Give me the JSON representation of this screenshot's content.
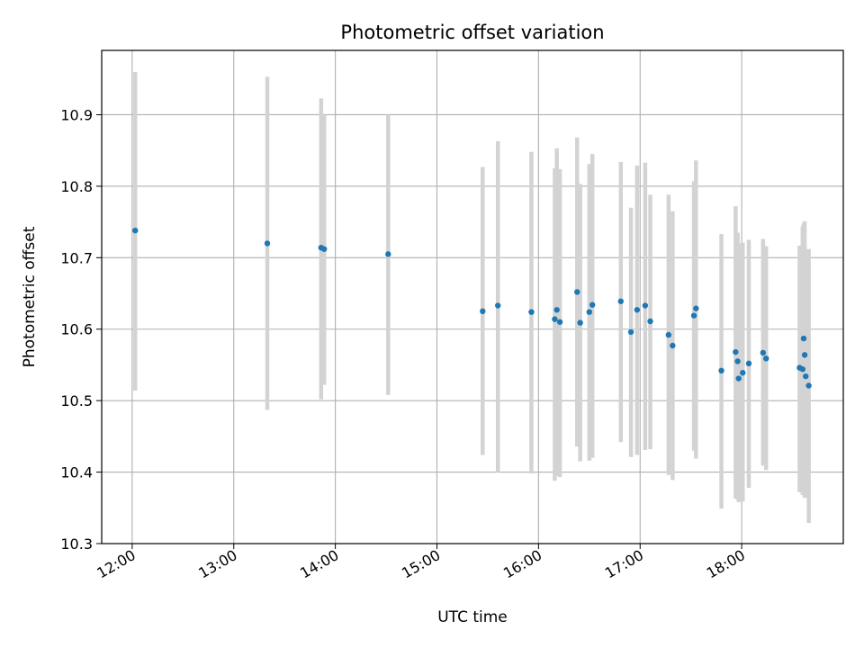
{
  "chart_data": {
    "type": "scatter",
    "title": "Photometric offset variation",
    "xlabel": "UTC time",
    "ylabel": "Photometric offset",
    "x_tick_labels": [
      "12:00",
      "13:00",
      "14:00",
      "15:00",
      "16:00",
      "17:00",
      "18:00"
    ],
    "x_ticks_hours": [
      12,
      13,
      14,
      15,
      16,
      17,
      18
    ],
    "y_ticks": [
      10.3,
      10.4,
      10.5,
      10.6,
      10.7,
      10.8,
      10.9
    ],
    "y_tick_labels": [
      "10.3",
      "10.4",
      "10.5",
      "10.6",
      "10.7",
      "10.8",
      "10.9"
    ],
    "xlim_hours": [
      11.7,
      19.0
    ],
    "ylim": [
      10.3,
      10.99
    ],
    "grid": true,
    "colors": {
      "points": "#1f77b4",
      "errorbars": "#d3d3d3",
      "grid": "#b0b0b0"
    },
    "points": [
      {
        "t": 12.03,
        "y": 10.738,
        "lo": 10.514,
        "hi": 10.96
      },
      {
        "t": 13.33,
        "y": 10.72,
        "lo": 10.487,
        "hi": 10.953
      },
      {
        "t": 13.86,
        "y": 10.714,
        "lo": 10.502,
        "hi": 10.923
      },
      {
        "t": 13.89,
        "y": 10.712,
        "lo": 10.522,
        "hi": 10.9
      },
      {
        "t": 14.52,
        "y": 10.705,
        "lo": 10.508,
        "hi": 10.9
      },
      {
        "t": 15.45,
        "y": 10.625,
        "lo": 10.424,
        "hi": 10.827
      },
      {
        "t": 15.6,
        "y": 10.633,
        "lo": 10.4,
        "hi": 10.863
      },
      {
        "t": 15.93,
        "y": 10.624,
        "lo": 10.398,
        "hi": 10.848
      },
      {
        "t": 16.16,
        "y": 10.614,
        "lo": 10.388,
        "hi": 10.825
      },
      {
        "t": 16.18,
        "y": 10.627,
        "lo": 10.395,
        "hi": 10.853
      },
      {
        "t": 16.21,
        "y": 10.61,
        "lo": 10.393,
        "hi": 10.824
      },
      {
        "t": 16.38,
        "y": 10.652,
        "lo": 10.436,
        "hi": 10.868
      },
      {
        "t": 16.41,
        "y": 10.609,
        "lo": 10.415,
        "hi": 10.803
      },
      {
        "t": 16.5,
        "y": 10.624,
        "lo": 10.416,
        "hi": 10.831
      },
      {
        "t": 16.53,
        "y": 10.634,
        "lo": 10.42,
        "hi": 10.845
      },
      {
        "t": 16.81,
        "y": 10.639,
        "lo": 10.442,
        "hi": 10.834
      },
      {
        "t": 16.91,
        "y": 10.596,
        "lo": 10.421,
        "hi": 10.77
      },
      {
        "t": 16.97,
        "y": 10.627,
        "lo": 10.424,
        "hi": 10.829
      },
      {
        "t": 17.05,
        "y": 10.633,
        "lo": 10.431,
        "hi": 10.833
      },
      {
        "t": 17.1,
        "y": 10.611,
        "lo": 10.432,
        "hi": 10.788
      },
      {
        "t": 17.28,
        "y": 10.592,
        "lo": 10.396,
        "hi": 10.788
      },
      {
        "t": 17.32,
        "y": 10.577,
        "lo": 10.389,
        "hi": 10.765
      },
      {
        "t": 17.53,
        "y": 10.619,
        "lo": 10.43,
        "hi": 10.807
      },
      {
        "t": 17.55,
        "y": 10.629,
        "lo": 10.419,
        "hi": 10.836
      },
      {
        "t": 17.8,
        "y": 10.542,
        "lo": 10.349,
        "hi": 10.733
      },
      {
        "t": 17.94,
        "y": 10.568,
        "lo": 10.363,
        "hi": 10.772
      },
      {
        "t": 17.96,
        "y": 10.555,
        "lo": 10.362,
        "hi": 10.735
      },
      {
        "t": 17.97,
        "y": 10.531,
        "lo": 10.358,
        "hi": 10.72
      },
      {
        "t": 18.01,
        "y": 10.539,
        "lo": 10.359,
        "hi": 10.721
      },
      {
        "t": 18.07,
        "y": 10.552,
        "lo": 10.378,
        "hi": 10.725
      },
      {
        "t": 18.21,
        "y": 10.567,
        "lo": 10.409,
        "hi": 10.726
      },
      {
        "t": 18.24,
        "y": 10.559,
        "lo": 10.403,
        "hi": 10.716
      },
      {
        "t": 18.57,
        "y": 10.546,
        "lo": 10.372,
        "hi": 10.717
      },
      {
        "t": 18.6,
        "y": 10.544,
        "lo": 10.368,
        "hi": 10.744
      },
      {
        "t": 18.61,
        "y": 10.587,
        "lo": 10.368,
        "hi": 10.748
      },
      {
        "t": 18.62,
        "y": 10.564,
        "lo": 10.364,
        "hi": 10.751
      },
      {
        "t": 18.63,
        "y": 10.534,
        "lo": 10.365,
        "hi": 10.703
      },
      {
        "t": 18.66,
        "y": 10.521,
        "lo": 10.329,
        "hi": 10.712
      }
    ]
  }
}
